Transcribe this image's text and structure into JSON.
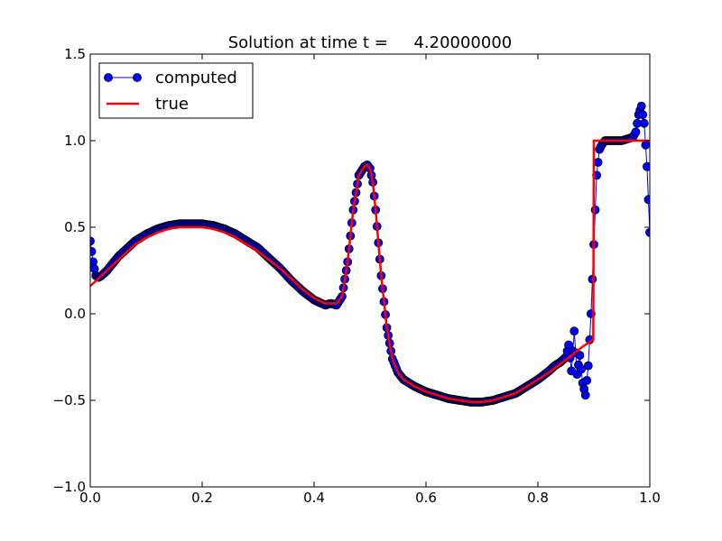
{
  "chart_data": {
    "type": "line",
    "title": "Solution at time t =     4.20000000",
    "xlabel": "",
    "ylabel": "",
    "xlim": [
      0.0,
      1.0
    ],
    "ylim": [
      -1.0,
      1.5
    ],
    "x_ticks": [
      "0.0",
      "0.2",
      "0.4",
      "0.6",
      "0.8",
      "1.0"
    ],
    "y_ticks": [
      "−1.0",
      "−0.5",
      "0.0",
      "0.5",
      "1.0",
      "1.5"
    ],
    "grid": false,
    "legend_position": "top-left",
    "series": [
      {
        "name": "computed",
        "style": "line-with-circle-markers",
        "color": "#0000ff",
        "marker_edge_color": "#000000",
        "x": [
          0.0,
          0.005,
          0.01,
          0.015,
          0.02,
          0.03,
          0.04,
          0.05,
          0.06,
          0.08,
          0.1,
          0.12,
          0.14,
          0.16,
          0.18,
          0.2,
          0.22,
          0.24,
          0.26,
          0.28,
          0.3,
          0.32,
          0.34,
          0.36,
          0.38,
          0.4,
          0.42,
          0.43,
          0.44,
          0.45,
          0.46,
          0.47,
          0.48,
          0.49,
          0.495,
          0.5,
          0.505,
          0.51,
          0.52,
          0.53,
          0.54,
          0.55,
          0.56,
          0.57,
          0.58,
          0.6,
          0.62,
          0.64,
          0.66,
          0.68,
          0.7,
          0.72,
          0.74,
          0.76,
          0.78,
          0.8,
          0.82,
          0.83,
          0.84,
          0.85,
          0.855,
          0.86,
          0.865,
          0.87,
          0.875,
          0.88,
          0.885,
          0.89,
          0.895,
          0.9,
          0.905,
          0.91,
          0.915,
          0.92,
          0.93,
          0.94,
          0.95,
          0.96,
          0.97,
          0.975,
          0.98,
          0.985,
          0.99,
          0.995,
          1.0
        ],
        "y": [
          0.42,
          0.3,
          0.22,
          0.21,
          0.22,
          0.25,
          0.29,
          0.33,
          0.36,
          0.42,
          0.46,
          0.49,
          0.51,
          0.52,
          0.52,
          0.52,
          0.51,
          0.49,
          0.46,
          0.42,
          0.38,
          0.32,
          0.26,
          0.19,
          0.13,
          0.08,
          0.05,
          0.06,
          0.05,
          0.1,
          0.3,
          0.6,
          0.8,
          0.85,
          0.86,
          0.84,
          0.76,
          0.6,
          0.22,
          -0.08,
          -0.26,
          -0.34,
          -0.38,
          -0.4,
          -0.42,
          -0.45,
          -0.47,
          -0.49,
          -0.5,
          -0.51,
          -0.51,
          -0.5,
          -0.48,
          -0.46,
          -0.42,
          -0.38,
          -0.33,
          -0.3,
          -0.28,
          -0.25,
          -0.18,
          -0.33,
          -0.1,
          -0.35,
          -0.24,
          -0.4,
          -0.47,
          -0.3,
          0.0,
          0.4,
          0.8,
          0.95,
          0.98,
          1.0,
          1.0,
          1.0,
          1.0,
          1.01,
          1.02,
          1.05,
          1.15,
          1.2,
          1.1,
          0.85,
          0.47
        ]
      },
      {
        "name": "true",
        "style": "line",
        "color": "#ff0000",
        "x": [
          0.0,
          0.01,
          0.02,
          0.04,
          0.06,
          0.08,
          0.1,
          0.12,
          0.14,
          0.16,
          0.18,
          0.2,
          0.22,
          0.24,
          0.26,
          0.28,
          0.3,
          0.32,
          0.34,
          0.36,
          0.38,
          0.4,
          0.42,
          0.43,
          0.44,
          0.45,
          0.46,
          0.47,
          0.48,
          0.49,
          0.495,
          0.5,
          0.505,
          0.51,
          0.52,
          0.53,
          0.54,
          0.55,
          0.56,
          0.57,
          0.58,
          0.6,
          0.62,
          0.64,
          0.66,
          0.68,
          0.7,
          0.72,
          0.74,
          0.76,
          0.78,
          0.8,
          0.82,
          0.84,
          0.86,
          0.88,
          0.899,
          0.9,
          0.92,
          0.94,
          0.96,
          0.98,
          1.0
        ],
        "y": [
          0.16,
          0.19,
          0.22,
          0.28,
          0.34,
          0.4,
          0.44,
          0.47,
          0.49,
          0.5,
          0.5,
          0.5,
          0.49,
          0.47,
          0.44,
          0.4,
          0.36,
          0.31,
          0.26,
          0.2,
          0.14,
          0.09,
          0.06,
          0.06,
          0.06,
          0.1,
          0.3,
          0.6,
          0.8,
          0.85,
          0.86,
          0.84,
          0.76,
          0.6,
          0.22,
          -0.08,
          -0.26,
          -0.34,
          -0.38,
          -0.4,
          -0.42,
          -0.45,
          -0.47,
          -0.49,
          -0.5,
          -0.51,
          -0.51,
          -0.5,
          -0.48,
          -0.46,
          -0.42,
          -0.38,
          -0.34,
          -0.29,
          -0.24,
          -0.19,
          -0.15,
          1.0,
          1.0,
          1.0,
          1.0,
          1.0,
          1.0
        ]
      }
    ]
  }
}
